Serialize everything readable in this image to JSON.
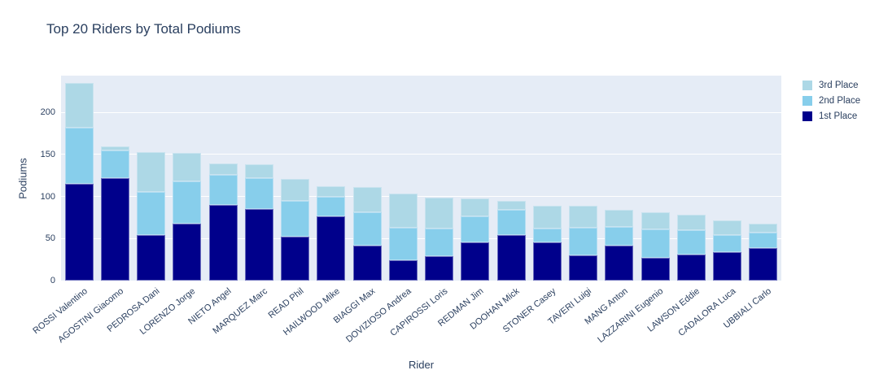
{
  "chart_data": {
    "type": "bar",
    "stacked": true,
    "title": "Top 20 Riders by Total Podiums",
    "xlabel": "Rider",
    "ylabel": "Podiums",
    "yticks": [
      0,
      50,
      100,
      150,
      200
    ],
    "ylim": [
      0,
      243.5
    ],
    "grid": true,
    "legend_position": "top-right",
    "legend_order_top_to_bottom": [
      "3rd Place",
      "2nd Place",
      "1st Place"
    ],
    "categories": [
      "ROSSI Valentino",
      "AGOSTINI Giacomo",
      "PEDROSA Dani",
      "LORENZO Jorge",
      "NIETO Angel",
      "MARQUEZ Marc",
      "READ Phil",
      "HAILWOOD Mike",
      "BIAGGI Max",
      "DOVIZIOSO Andrea",
      "CAPIROSSI Loris",
      "REDMAN Jim",
      "DOOHAN Mick",
      "STONER Casey",
      "TAVERI Luigi",
      "MANG Anton",
      "LAZZARINI Eugenio",
      "LAWSON Eddie",
      "CADALORA Luca",
      "UBBIALI Carlo"
    ],
    "series": [
      {
        "name": "1st Place",
        "color": "#00008b",
        "values": [
          115,
          122,
          54,
          68,
          90,
          85,
          52,
          76,
          42,
          24,
          29,
          45,
          54,
          45,
          30,
          42,
          27,
          31,
          34,
          39
        ]
      },
      {
        "name": "2nd Place",
        "color": "#87ceeb",
        "values": [
          67,
          33,
          51,
          50,
          36,
          37,
          43,
          24,
          39,
          39,
          33,
          31,
          30,
          17,
          33,
          22,
          34,
          29,
          20,
          18
        ]
      },
      {
        "name": "3rd Place",
        "color": "#add8e6",
        "values": [
          53,
          4,
          48,
          34,
          13,
          16,
          26,
          12,
          30,
          40,
          37,
          22,
          11,
          27,
          26,
          20,
          20,
          18,
          18,
          11
        ]
      }
    ],
    "totals": [
      235,
      159,
      153,
      152,
      139,
      138,
      121,
      112,
      111,
      103,
      99,
      98,
      95,
      89,
      89,
      84,
      81,
      78,
      72,
      68
    ],
    "colors": {
      "plot_background": "#e5ecf6",
      "paper_background": "#ffffff",
      "gridline": "#ffffff",
      "text": "#2a3f5f"
    }
  }
}
